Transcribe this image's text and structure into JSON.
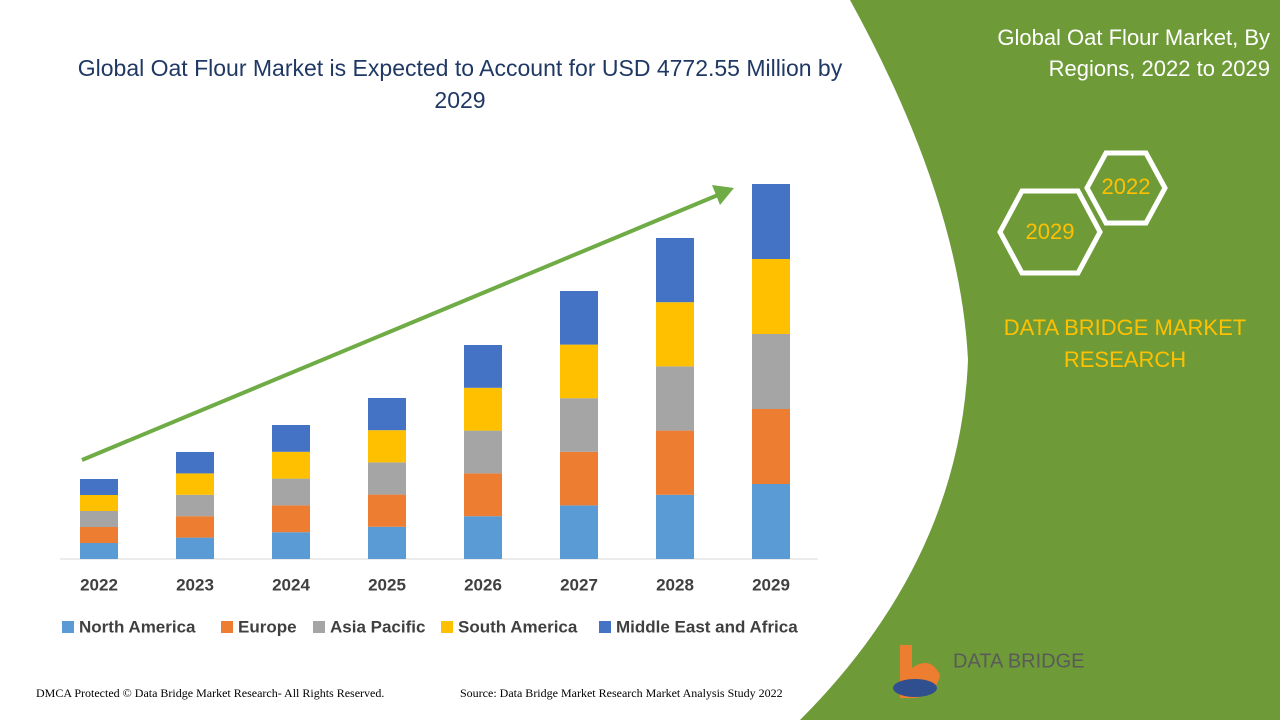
{
  "chart_data": {
    "type": "stacked_bar",
    "title": "Global Oat Flour Market is Expected to Account for USD 4772.55 Million by 2029",
    "categories": [
      "2022",
      "2023",
      "2024",
      "2025",
      "2026",
      "2027",
      "2028",
      "2029"
    ],
    "series": [
      {
        "name": "North America",
        "color": "#5b9bd5",
        "values": [
          16,
          21.4,
          26.8,
          32.2,
          42.8,
          53.6,
          64.2,
          75
        ]
      },
      {
        "name": "Europe",
        "color": "#ed7d31",
        "values": [
          16,
          21.4,
          26.8,
          32.2,
          42.8,
          53.6,
          64.2,
          75
        ]
      },
      {
        "name": "Asia Pacific",
        "color": "#a5a5a5",
        "values": [
          16,
          21.4,
          26.8,
          32.2,
          42.8,
          53.6,
          64.2,
          75
        ]
      },
      {
        "name": "South America",
        "color": "#ffc000",
        "values": [
          16,
          21.4,
          26.8,
          32.2,
          42.8,
          53.6,
          64.2,
          75
        ]
      },
      {
        "name": "Middle East and Africa",
        "color": "#4472c4",
        "values": [
          16,
          21.4,
          26.8,
          32.2,
          42.8,
          53.6,
          64.2,
          75
        ]
      }
    ]
  },
  "side_panel": {
    "title": "Global Oat Flour Market, By Regions, 2022 to 2029",
    "hexagons": [
      "2022",
      "2029"
    ],
    "brand": "DATA BRIDGE MARKET RESEARCH"
  },
  "logo": {
    "text": "DATA BRIDGE"
  },
  "footer": {
    "left": "DMCA Protected © Data Bridge Market Research- All Rights Reserved.",
    "right": "Source: Data Bridge Market Research Market Analysis Study 2022"
  }
}
